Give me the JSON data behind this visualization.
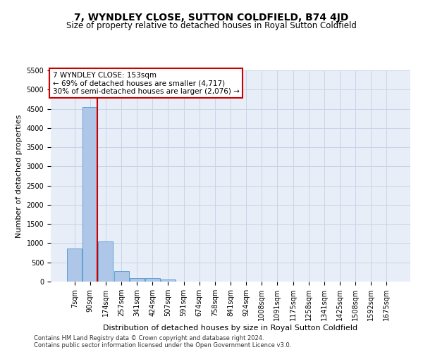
{
  "title": "7, WYNDLEY CLOSE, SUTTON COLDFIELD, B74 4JD",
  "subtitle": "Size of property relative to detached houses in Royal Sutton Coldfield",
  "xlabel": "Distribution of detached houses by size in Royal Sutton Coldfield",
  "ylabel": "Number of detached properties",
  "footnote1": "Contains HM Land Registry data © Crown copyright and database right 2024.",
  "footnote2": "Contains public sector information licensed under the Open Government Licence v3.0.",
  "categories": [
    "7sqm",
    "90sqm",
    "174sqm",
    "257sqm",
    "341sqm",
    "424sqm",
    "507sqm",
    "591sqm",
    "674sqm",
    "758sqm",
    "841sqm",
    "924sqm",
    "1008sqm",
    "1091sqm",
    "1175sqm",
    "1258sqm",
    "1341sqm",
    "1425sqm",
    "1508sqm",
    "1592sqm",
    "1675sqm"
  ],
  "bar_values": [
    870,
    4540,
    1050,
    275,
    90,
    90,
    55,
    0,
    0,
    0,
    0,
    0,
    0,
    0,
    0,
    0,
    0,
    0,
    0,
    0,
    0
  ],
  "bar_color": "#aec6e8",
  "bar_edge_color": "#5a9fd4",
  "highlight_color": "#cc0000",
  "vline_bar_index": 1,
  "annotation_title": "7 WYNDLEY CLOSE: 153sqm",
  "annotation_line1": "← 69% of detached houses are smaller (4,717)",
  "annotation_line2": "30% of semi-detached houses are larger (2,076) →",
  "annotation_box_color": "#cc0000",
  "ylim": [
    0,
    5500
  ],
  "yticks": [
    0,
    500,
    1000,
    1500,
    2000,
    2500,
    3000,
    3500,
    4000,
    4500,
    5000,
    5500
  ],
  "bg_color": "#ffffff",
  "plot_bg_color": "#e8eef8",
  "grid_color": "#c8d4e8",
  "title_fontsize": 10,
  "subtitle_fontsize": 8.5,
  "xlabel_fontsize": 8,
  "ylabel_fontsize": 8,
  "tick_fontsize": 7,
  "footnote_fontsize": 6,
  "annotation_fontsize": 7.5
}
